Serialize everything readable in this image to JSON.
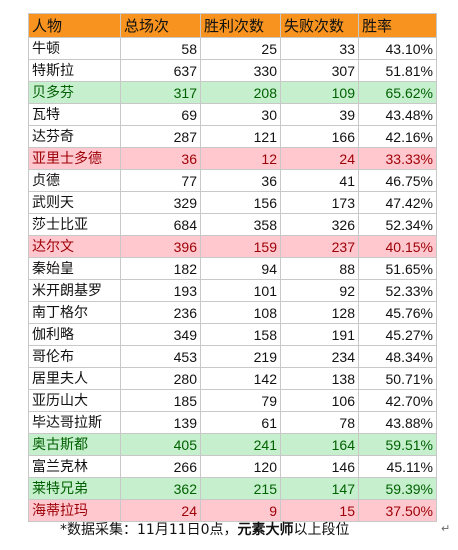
{
  "table": {
    "headers": [
      "人物",
      "总场次",
      "胜利次数",
      "失败次数",
      "胜率"
    ],
    "header_color": "#f7931e",
    "highlight_colors": {
      "green": "#c6efce",
      "red": "#ffc7ce"
    },
    "rows": [
      {
        "name": "牛顿",
        "total": "58",
        "wins": "25",
        "losses": "33",
        "rate": "43.10%",
        "hl": ""
      },
      {
        "name": "特斯拉",
        "total": "637",
        "wins": "330",
        "losses": "307",
        "rate": "51.81%",
        "hl": ""
      },
      {
        "name": "贝多芬",
        "total": "317",
        "wins": "208",
        "losses": "109",
        "rate": "65.62%",
        "hl": "green"
      },
      {
        "name": "瓦特",
        "total": "69",
        "wins": "30",
        "losses": "39",
        "rate": "43.48%",
        "hl": ""
      },
      {
        "name": "达芬奇",
        "total": "287",
        "wins": "121",
        "losses": "166",
        "rate": "42.16%",
        "hl": ""
      },
      {
        "name": "亚里士多德",
        "total": "36",
        "wins": "12",
        "losses": "24",
        "rate": "33.33%",
        "hl": "red"
      },
      {
        "name": "贞德",
        "total": "77",
        "wins": "36",
        "losses": "41",
        "rate": "46.75%",
        "hl": ""
      },
      {
        "name": "武则天",
        "total": "329",
        "wins": "156",
        "losses": "173",
        "rate": "47.42%",
        "hl": ""
      },
      {
        "name": "莎士比亚",
        "total": "684",
        "wins": "358",
        "losses": "326",
        "rate": "52.34%",
        "hl": ""
      },
      {
        "name": "达尔文",
        "total": "396",
        "wins": "159",
        "losses": "237",
        "rate": "40.15%",
        "hl": "red"
      },
      {
        "name": "秦始皇",
        "total": "182",
        "wins": "94",
        "losses": "88",
        "rate": "51.65%",
        "hl": ""
      },
      {
        "name": "米开朗基罗",
        "total": "193",
        "wins": "101",
        "losses": "92",
        "rate": "52.33%",
        "hl": ""
      },
      {
        "name": "南丁格尔",
        "total": "236",
        "wins": "108",
        "losses": "128",
        "rate": "45.76%",
        "hl": ""
      },
      {
        "name": "伽利略",
        "total": "349",
        "wins": "158",
        "losses": "191",
        "rate": "45.27%",
        "hl": ""
      },
      {
        "name": "哥伦布",
        "total": "453",
        "wins": "219",
        "losses": "234",
        "rate": "48.34%",
        "hl": ""
      },
      {
        "name": "居里夫人",
        "total": "280",
        "wins": "142",
        "losses": "138",
        "rate": "50.71%",
        "hl": ""
      },
      {
        "name": "亚历山大",
        "total": "185",
        "wins": "79",
        "losses": "106",
        "rate": "42.70%",
        "hl": ""
      },
      {
        "name": "毕达哥拉斯",
        "total": "139",
        "wins": "61",
        "losses": "78",
        "rate": "43.88%",
        "hl": ""
      },
      {
        "name": "奥古斯都",
        "total": "405",
        "wins": "241",
        "losses": "164",
        "rate": "59.51%",
        "hl": "green"
      },
      {
        "name": "富兰克林",
        "total": "266",
        "wins": "120",
        "losses": "146",
        "rate": "45.11%",
        "hl": ""
      },
      {
        "name": "莱特兄弟",
        "total": "362",
        "wins": "215",
        "losses": "147",
        "rate": "59.39%",
        "hl": "green"
      },
      {
        "name": "海蒂拉玛",
        "total": "24",
        "wins": "9",
        "losses": "15",
        "rate": "37.50%",
        "hl": "red"
      }
    ]
  },
  "footnote": {
    "prefix": "*数据采集：11月11日0点，",
    "bold": "元素大师",
    "suffix": "以上段位"
  }
}
